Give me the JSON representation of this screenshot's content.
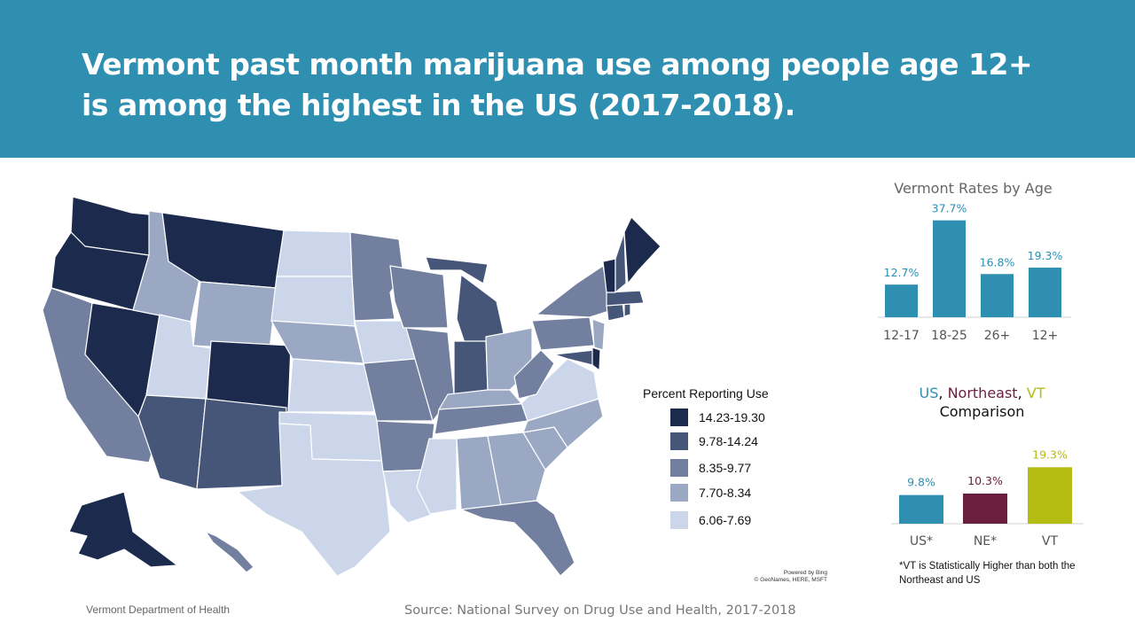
{
  "header": {
    "title": "Vermont past month marijuana use among people age 12+ is among the highest in the US (2017-2018)."
  },
  "map": {
    "legend_title": "Percent Reporting Use",
    "legend": [
      {
        "label": "14.23-19.30",
        "color": "#1c2b4d"
      },
      {
        "label": "9.78-14.24",
        "color": "#465678"
      },
      {
        "label": "8.35-9.77",
        "color": "#727f9e"
      },
      {
        "label": "7.70-8.34",
        "color": "#9ba8c3"
      },
      {
        "label": "6.06-7.69",
        "color": "#cbd6ea"
      }
    ],
    "attribution": [
      "Powered by Bing",
      "© GeoNames, HERE, MSFT"
    ]
  },
  "footer": {
    "department": "Vermont Department of Health",
    "source": "Source: National Survey on Drug Use and Health, 2017-2018"
  },
  "comparison_title": {
    "us": "US",
    "ne": "Northeast",
    "vt": "VT",
    "sep": ", ",
    "line2": "Comparison"
  },
  "footnote": "*VT is Statistically Higher than both the Northeast and US",
  "chart_data": [
    {
      "type": "bar",
      "title": "Vermont Rates by Age",
      "categories": [
        "12-17",
        "18-25",
        "26+",
        "12+"
      ],
      "values": [
        12.7,
        37.7,
        16.8,
        19.3
      ],
      "data_labels": [
        "12.7%",
        "37.7%",
        "16.8%",
        "19.3%"
      ],
      "color": "#2e8fb0",
      "label_color": "#2e8fb0",
      "ylim": [
        0,
        40
      ]
    },
    {
      "type": "bar",
      "title": "US, Northeast, VT Comparison",
      "categories": [
        "US*",
        "NE*",
        "VT"
      ],
      "values": [
        9.8,
        10.3,
        19.3
      ],
      "data_labels": [
        "9.8%",
        "10.3%",
        "19.3%"
      ],
      "colors": [
        "#2e8fb0",
        "#6a1f3e",
        "#b5bc12"
      ],
      "ylim": [
        0,
        20
      ]
    }
  ]
}
